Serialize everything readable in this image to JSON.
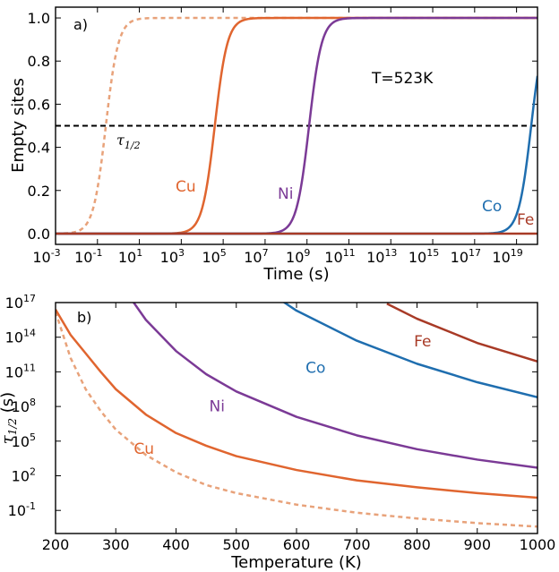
{
  "chart_data": [
    {
      "type": "line",
      "panel_label": "a)",
      "xlabel": "Time (s)",
      "ylabel": "Empty sites",
      "xscale": "log",
      "xlim_exp": [
        -3,
        20
      ],
      "ylim": [
        -0.05,
        1.05
      ],
      "xticks": [
        {
          "base": "10",
          "exp": "-3",
          "e": -3
        },
        {
          "base": "10",
          "exp": "-1",
          "e": -1
        },
        {
          "base": "10",
          "exp": "1",
          "e": 1
        },
        {
          "base": "10",
          "exp": "3",
          "e": 3
        },
        {
          "base": "10",
          "exp": "5",
          "e": 5
        },
        {
          "base": "10",
          "exp": "7",
          "e": 7
        },
        {
          "base": "10",
          "exp": "9",
          "e": 9
        },
        {
          "base": "10",
          "exp": "11",
          "e": 11
        },
        {
          "base": "10",
          "exp": "13",
          "e": 13
        },
        {
          "base": "10",
          "exp": "15",
          "e": 15
        },
        {
          "base": "10",
          "exp": "17",
          "e": 17
        },
        {
          "base": "10",
          "exp": "19",
          "e": 19
        }
      ],
      "yticks": [
        {
          "label": "0.0",
          "v": 0.0
        },
        {
          "label": "0.2",
          "v": 0.2
        },
        {
          "label": "0.4",
          "v": 0.4
        },
        {
          "label": "0.6",
          "v": 0.6
        },
        {
          "label": "0.8",
          "v": 0.8
        },
        {
          "label": "1.0",
          "v": 1.0
        }
      ],
      "annotation": "T=523K",
      "threshold": 0.5,
      "threshold_label": {
        "sym": "τ",
        "sub": "1/2"
      },
      "series": [
        {
          "name": "",
          "color": "#e8a27a",
          "dashed": true,
          "log10_t_half": -0.6,
          "width_decades": 0.3
        },
        {
          "name": "Cu",
          "color": "#e0652f",
          "dashed": false,
          "log10_t_half": 4.6,
          "width_decades": 0.3
        },
        {
          "name": "Ni",
          "color": "#7b3a96",
          "dashed": false,
          "log10_t_half": 9.1,
          "width_decades": 0.3
        },
        {
          "name": "Co",
          "color": "#1f6eaf",
          "dashed": false,
          "log10_t_half": 19.7,
          "width_decades": 0.3
        },
        {
          "name": "Fe",
          "color": "#a83a26",
          "dashed": false,
          "log10_t_half": 24.0,
          "width_decades": 0.3
        }
      ]
    },
    {
      "type": "line",
      "panel_label": "b)",
      "xlabel": "Temperature (K)",
      "ylabel_sym": "τ",
      "ylabel_sub": "1/2",
      "ylabel_unit": " (s)",
      "yscale": "log",
      "xlim": [
        200,
        1000
      ],
      "ylim_exp": [
        -3,
        17
      ],
      "xticks": [
        200,
        300,
        400,
        500,
        600,
        700,
        800,
        900,
        1000
      ],
      "yticks": [
        {
          "base": "10",
          "exp": "-1",
          "e": -1
        },
        {
          "base": "10",
          "exp": "2",
          "e": 2
        },
        {
          "base": "10",
          "exp": "5",
          "e": 5
        },
        {
          "base": "10",
          "exp": "8",
          "e": 8
        },
        {
          "base": "10",
          "exp": "11",
          "e": 11
        },
        {
          "base": "10",
          "exp": "14",
          "e": 14
        },
        {
          "base": "10",
          "exp": "17",
          "e": 17
        }
      ],
      "series": [
        {
          "name": "",
          "color": "#e8a27a",
          "dashed": true,
          "x": [
            200,
            225,
            250,
            275,
            300,
            350,
            400,
            450,
            500,
            600,
            700,
            800,
            900,
            1000
          ],
          "log10_y": [
            16.2,
            12.2,
            9.5,
            7.6,
            6.0,
            3.8,
            2.3,
            1.2,
            0.5,
            -0.5,
            -1.2,
            -1.7,
            -2.1,
            -2.4
          ]
        },
        {
          "name": "Cu",
          "color": "#e0652f",
          "dashed": false,
          "x": [
            200,
            225,
            250,
            275,
            300,
            350,
            400,
            450,
            500,
            600,
            700,
            800,
            900,
            1000
          ],
          "log10_y": [
            16.4,
            14.2,
            12.6,
            11.0,
            9.5,
            7.3,
            5.7,
            4.6,
            3.7,
            2.5,
            1.6,
            1.0,
            0.5,
            0.1
          ]
        },
        {
          "name": "Ni",
          "color": "#7b3a96",
          "dashed": false,
          "x": [
            300,
            350,
            400,
            450,
            500,
            600,
            700,
            800,
            900,
            1000
          ],
          "log10_y": [
            19.2,
            15.5,
            12.8,
            10.8,
            9.3,
            7.1,
            5.5,
            4.3,
            3.4,
            2.7
          ]
        },
        {
          "name": "Co",
          "color": "#1f6eaf",
          "dashed": false,
          "x": [
            500,
            600,
            700,
            800,
            900,
            1000
          ],
          "log10_y": [
            19.8,
            16.3,
            13.7,
            11.7,
            10.1,
            8.8
          ]
        },
        {
          "name": "Fe",
          "color": "#a83a26",
          "dashed": false,
          "x": [
            750,
            800,
            900,
            1000
          ],
          "log10_y": [
            16.9,
            15.6,
            13.5,
            11.9
          ]
        }
      ],
      "curve_labels": [
        {
          "name": "Cu",
          "color": "#e0652f",
          "x": 330,
          "log10_y": 3.9
        },
        {
          "name": "Ni",
          "color": "#7b3a96",
          "x": 455,
          "log10_y": 7.6
        },
        {
          "name": "Co",
          "color": "#1f6eaf",
          "x": 615,
          "log10_y": 10.9
        },
        {
          "name": "Fe",
          "color": "#a83a26",
          "x": 795,
          "log10_y": 13.2
        }
      ]
    }
  ]
}
